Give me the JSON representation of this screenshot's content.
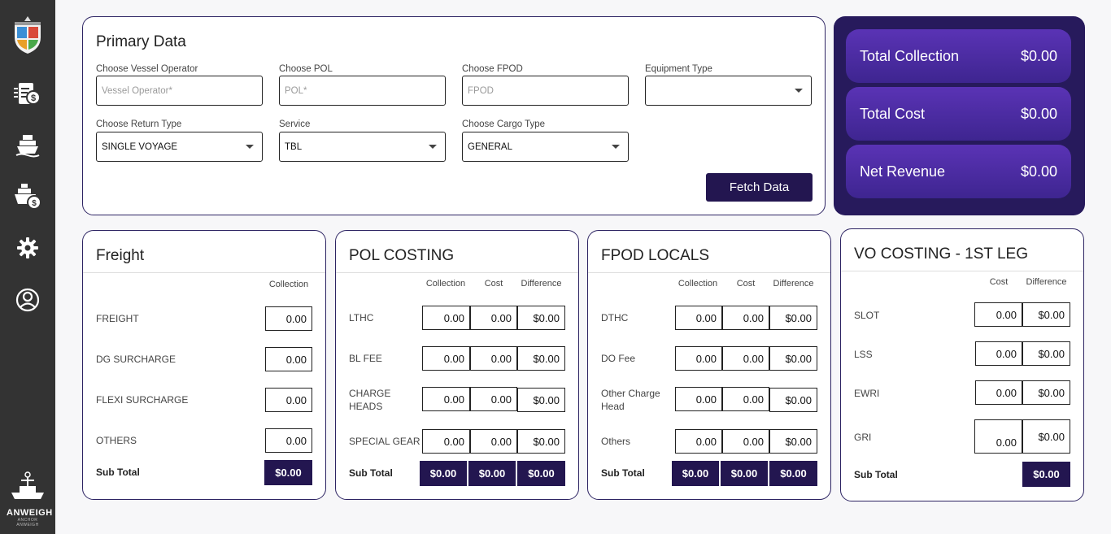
{
  "sidebar": {
    "brand_name": "ANWEIGH",
    "brand_tag": "ANCHOR ANWEIGH",
    "icons": [
      "crest-logo-icon",
      "invoice-dollar-icon",
      "ship-icon",
      "cargo-ship-dollar-icon",
      "gear-icon",
      "user-circle-icon"
    ]
  },
  "primary": {
    "title": "Primary Data",
    "fields": {
      "vessel_operator": {
        "label": "Choose Vessel Operator",
        "placeholder": "Vessel Operator*"
      },
      "pol": {
        "label": "Choose POL",
        "placeholder": "POL*"
      },
      "fpod": {
        "label": "Choose FPOD",
        "placeholder": "FPOD"
      },
      "equipment": {
        "label": "Equipment Type",
        "value": ""
      },
      "return_type": {
        "label": "Choose Return Type",
        "value": "SINGLE VOYAGE"
      },
      "service": {
        "label": "Service",
        "value": "TBL"
      },
      "cargo_type": {
        "label": "Choose Cargo Type",
        "value": "GENERAL"
      }
    },
    "fetch_label": "Fetch Data"
  },
  "summary": {
    "collection": {
      "label": "Total Collection",
      "value": "$0.00"
    },
    "cost": {
      "label": "Total Cost",
      "value": "$0.00"
    },
    "revenue": {
      "label": "Net Revenue",
      "value": "$0.00"
    }
  },
  "freight": {
    "title": "Freight",
    "col_collection": "Collection",
    "rows": [
      {
        "label": "FREIGHT",
        "collection": "0.00"
      },
      {
        "label": "DG SURCHARGE",
        "collection": "0.00"
      },
      {
        "label": "FLEXI SURCHARGE",
        "collection": "0.00"
      },
      {
        "label": "OTHERS",
        "collection": "0.00"
      }
    ],
    "subtotal_label": "Sub Total",
    "subtotal_collection": "$0.00"
  },
  "pol_costing": {
    "title": "POL COSTING",
    "col_collection": "Collection",
    "col_cost": "Cost",
    "col_diff": "Difference",
    "rows": [
      {
        "label": "LTHC",
        "collection": "0.00",
        "cost": "0.00",
        "diff": "$0.00"
      },
      {
        "label": "BL FEE",
        "collection": "0.00",
        "cost": "0.00",
        "diff": "$0.00"
      },
      {
        "label_line1": "CHARGE",
        "label_line2": "HEADS",
        "collection": "0.00",
        "cost": "0.00",
        "diff": "$0.00"
      },
      {
        "label": "SPECIAL GEAR",
        "collection": "0.00",
        "cost": "0.00",
        "diff": "$0.00"
      }
    ],
    "subtotal_label": "Sub Total",
    "subtotal": {
      "collection": "$0.00",
      "cost": "$0.00",
      "diff": "$0.00"
    }
  },
  "fpod_locals": {
    "title": "FPOD LOCALS",
    "col_collection": "Collection",
    "col_cost": "Cost",
    "col_diff": "Difference",
    "rows": [
      {
        "label": "DTHC",
        "collection": "0.00",
        "cost": "0.00",
        "diff": "$0.00"
      },
      {
        "label": "DO Fee",
        "collection": "0.00",
        "cost": "0.00",
        "diff": "$0.00"
      },
      {
        "label_line1": "Other Charge",
        "label_line2": "Head",
        "collection": "0.00",
        "cost": "0.00",
        "diff": "$0.00"
      },
      {
        "label": "Others",
        "collection": "0.00",
        "cost": "0.00",
        "diff": "$0.00"
      }
    ],
    "subtotal_label": "Sub Total",
    "subtotal": {
      "collection": "$0.00",
      "cost": "$0.00",
      "diff": "$0.00"
    }
  },
  "vo_costing": {
    "title": "VO COSTING - 1ST LEG",
    "col_cost": "Cost",
    "col_diff": "Difference",
    "rows": [
      {
        "label": "SLOT",
        "cost": "0.00",
        "diff": "$0.00"
      },
      {
        "label": "LSS",
        "cost": "0.00",
        "diff": "$0.00"
      },
      {
        "label": "EWRI",
        "cost": "0.00",
        "diff": "$0.00"
      },
      {
        "label": "GRI",
        "cost": "0.00",
        "diff": "$0.00"
      }
    ],
    "subtotal_label": "Sub Total",
    "subtotal_diff": "$0.00"
  },
  "colors": {
    "sidebar": "#333333",
    "accent": "#231650",
    "summary_bg": "#271a5c",
    "summary_box": "#4a2ca0"
  }
}
